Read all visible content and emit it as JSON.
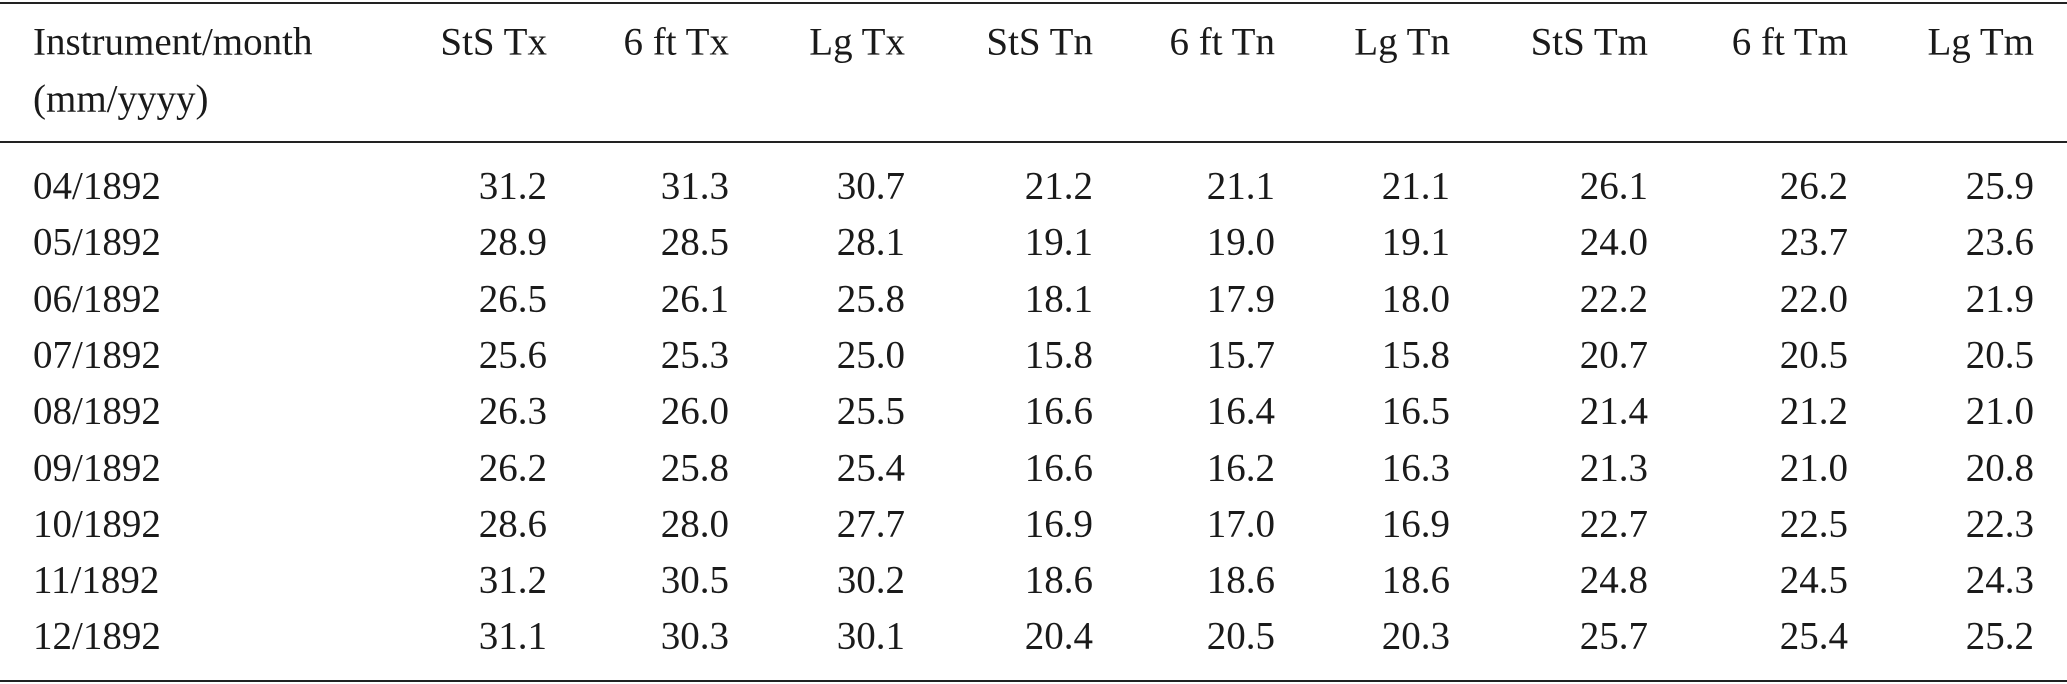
{
  "table": {
    "header": [
      [
        "Instrument/month",
        "(mm/yyyy)"
      ],
      "StS Tx",
      "6 ft Tx",
      "Lg Tx",
      "StS Tn",
      "6 ft Tn",
      "Lg Tn",
      "StS Tm",
      "6 ft Tm",
      "Lg Tm"
    ],
    "rows": [
      [
        "04/1892",
        "31.2",
        "31.3",
        "30.7",
        "21.2",
        "21.1",
        "21.1",
        "26.1",
        "26.2",
        "25.9"
      ],
      [
        "05/1892",
        "28.9",
        "28.5",
        "28.1",
        "19.1",
        "19.0",
        "19.1",
        "24.0",
        "23.7",
        "23.6"
      ],
      [
        "06/1892",
        "26.5",
        "26.1",
        "25.8",
        "18.1",
        "17.9",
        "18.0",
        "22.2",
        "22.0",
        "21.9"
      ],
      [
        "07/1892",
        "25.6",
        "25.3",
        "25.0",
        "15.8",
        "15.7",
        "15.8",
        "20.7",
        "20.5",
        "20.5"
      ],
      [
        "08/1892",
        "26.3",
        "26.0",
        "25.5",
        "16.6",
        "16.4",
        "16.5",
        "21.4",
        "21.2",
        "21.0"
      ],
      [
        "09/1892",
        "26.2",
        "25.8",
        "25.4",
        "16.6",
        "16.2",
        "16.3",
        "21.3",
        "21.0",
        "20.8"
      ],
      [
        "10/1892",
        "28.6",
        "28.0",
        "27.7",
        "16.9",
        "17.0",
        "16.9",
        "22.7",
        "22.5",
        "22.3"
      ],
      [
        "11/1892",
        "31.2",
        "30.5",
        "30.2",
        "18.6",
        "18.6",
        "18.6",
        "24.8",
        "24.5",
        "24.3"
      ],
      [
        "12/1892",
        "31.1",
        "30.3",
        "30.1",
        "20.4",
        "20.5",
        "20.3",
        "25.7",
        "25.4",
        "25.2"
      ]
    ]
  }
}
